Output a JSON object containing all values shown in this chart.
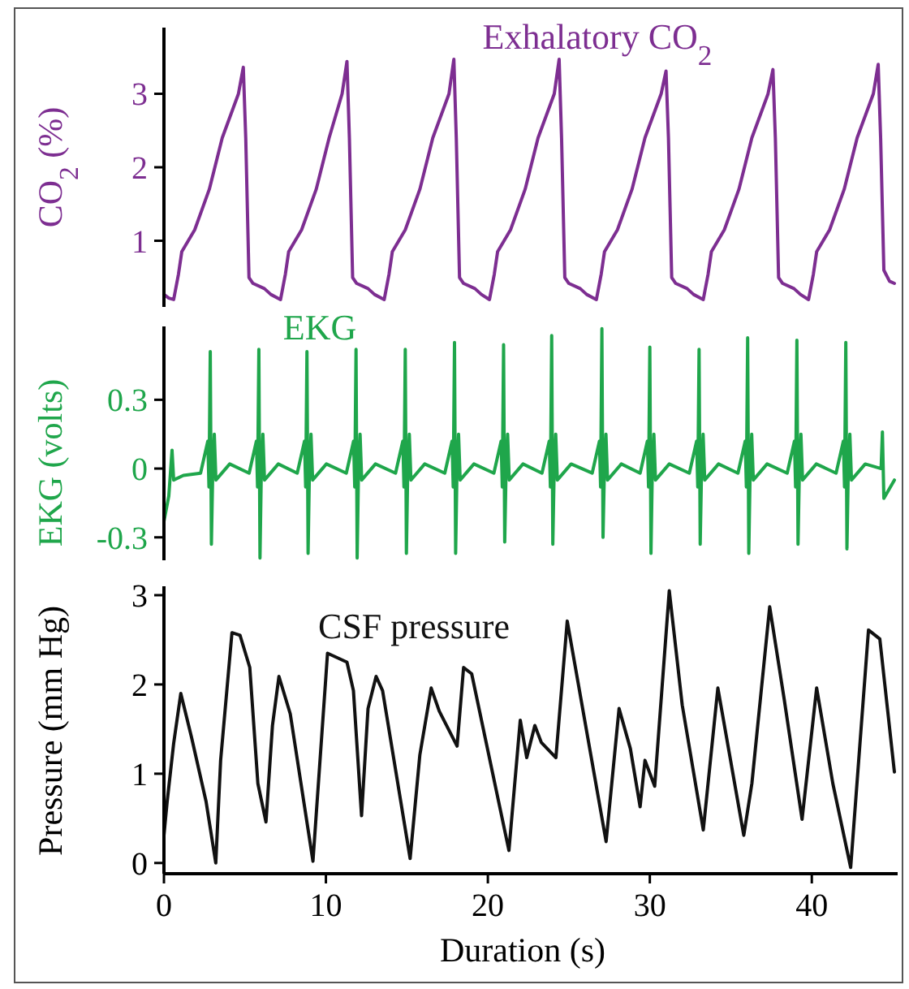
{
  "chart_data": [
    {
      "type": "line",
      "title": "Exhalatory CO$_{2}$",
      "ylabel": "CO$_{2}$ (%)",
      "xlim": [
        0,
        45.3
      ],
      "ylim": [
        0.1,
        3.9
      ],
      "yticks": [
        1,
        2,
        3
      ],
      "tick_labels": "y",
      "series": [
        {
          "color": "#7d2e91",
          "x": [
            0,
            0.3,
            0.6,
            0.9,
            1.1,
            1.5,
            1.9,
            2.8,
            3.6,
            4.6,
            4.9,
            5.05,
            5.25,
            5.5,
            6.2,
            6.6,
            7.2,
            7.5,
            7.7,
            8.1,
            8.5,
            9.4,
            10.2,
            11.0,
            11.3,
            11.45,
            11.65,
            11.9,
            12.6,
            13.0,
            13.6,
            13.9,
            14.1,
            14.5,
            14.9,
            15.8,
            16.6,
            17.6,
            17.9,
            18.05,
            18.25,
            18.5,
            19.2,
            19.6,
            20.1,
            20.4,
            20.6,
            21.0,
            21.4,
            22.3,
            23.1,
            24.1,
            24.4,
            24.55,
            24.75,
            25.0,
            25.7,
            26.1,
            26.7,
            27.0,
            27.2,
            27.6,
            28.0,
            28.9,
            29.7,
            30.7,
            31.0,
            31.15,
            31.35,
            31.6,
            32.3,
            32.7,
            33.3,
            33.6,
            33.8,
            34.2,
            34.6,
            35.5,
            36.3,
            37.3,
            37.6,
            37.75,
            37.95,
            38.2,
            38.9,
            39.3,
            39.8,
            40.1,
            40.3,
            40.7,
            41.1,
            42.0,
            42.8,
            43.8,
            44.1,
            44.25,
            44.45,
            44.8,
            45.1
          ],
          "values": [
            0.27,
            0.22,
            0.2,
            0.55,
            0.85,
            1.0,
            1.15,
            1.7,
            2.4,
            3.0,
            3.36,
            2.4,
            0.5,
            0.42,
            0.35,
            0.27,
            0.2,
            0.55,
            0.85,
            1.0,
            1.15,
            1.7,
            2.4,
            3.0,
            3.44,
            2.4,
            0.5,
            0.42,
            0.35,
            0.27,
            0.2,
            0.55,
            0.85,
            1.0,
            1.15,
            1.7,
            2.4,
            3.0,
            3.47,
            2.4,
            0.5,
            0.42,
            0.35,
            0.27,
            0.2,
            0.55,
            0.85,
            1.0,
            1.15,
            1.7,
            2.4,
            3.0,
            3.47,
            2.4,
            0.5,
            0.42,
            0.35,
            0.27,
            0.2,
            0.55,
            0.85,
            1.0,
            1.15,
            1.7,
            2.4,
            3.0,
            3.31,
            2.4,
            0.5,
            0.42,
            0.35,
            0.27,
            0.2,
            0.55,
            0.85,
            1.0,
            1.15,
            1.7,
            2.4,
            3.0,
            3.33,
            2.4,
            0.5,
            0.42,
            0.35,
            0.27,
            0.2,
            0.55,
            0.85,
            1.0,
            1.15,
            1.7,
            2.4,
            3.0,
            3.4,
            2.4,
            0.6,
            0.45,
            0.42
          ]
        }
      ]
    },
    {
      "type": "line",
      "title": "EKG",
      "ylabel": "EKG (volts)",
      "xlim": [
        0,
        45.3
      ],
      "ylim": [
        -0.4,
        0.62
      ],
      "yticks": [
        -0.3,
        0,
        0.3
      ],
      "tick_labels": "y",
      "series": [
        {
          "color": "#1fa64b",
          "x": [
            0,
            0.3,
            0.5,
            0.6,
            1.2,
            2.26,
            2.71,
            2.78,
            2.86,
            2.93,
            3.01,
            3.11,
            3.21,
            4.06,
            5.26,
            5.71,
            5.78,
            5.86,
            5.93,
            6.01,
            6.11,
            6.21,
            7.06,
            8.23,
            8.68,
            8.75,
            8.83,
            8.9,
            8.98,
            9.08,
            9.18,
            10.03,
            11.26,
            11.71,
            11.78,
            11.86,
            11.93,
            12.01,
            12.11,
            12.21,
            13.06,
            14.3,
            14.75,
            14.82,
            14.9,
            14.97,
            15.05,
            15.15,
            15.25,
            16.1,
            17.34,
            17.79,
            17.86,
            17.94,
            18.01,
            18.09,
            18.19,
            18.29,
            19.14,
            20.37,
            20.82,
            20.89,
            20.97,
            21.04,
            21.12,
            21.22,
            21.32,
            22.17,
            23.34,
            23.79,
            23.86,
            23.94,
            24.01,
            24.09,
            24.19,
            24.29,
            25.14,
            26.44,
            26.89,
            26.96,
            27.04,
            27.11,
            27.19,
            27.29,
            27.39,
            28.24,
            29.4,
            29.85,
            29.92,
            30.0,
            30.07,
            30.15,
            30.25,
            30.35,
            31.2,
            32.44,
            32.89,
            32.96,
            33.04,
            33.11,
            33.19,
            33.29,
            33.39,
            34.24,
            35.44,
            35.89,
            35.96,
            36.04,
            36.11,
            36.19,
            36.29,
            36.39,
            37.24,
            38.48,
            38.93,
            39.0,
            39.08,
            39.15,
            39.23,
            39.33,
            39.43,
            40.28,
            41.5,
            41.95,
            42.02,
            42.1,
            42.17,
            42.25,
            42.35,
            42.45,
            43.3,
            44.28,
            44.36,
            44.45,
            45.1
          ],
          "values": [
            -0.23,
            -0.12,
            0.08,
            -0.05,
            -0.03,
            -0.02,
            0.12,
            -0.08,
            0.51,
            -0.33,
            -0.02,
            0.15,
            -0.05,
            0.02,
            -0.02,
            0.12,
            -0.08,
            0.52,
            -0.39,
            -0.02,
            0.15,
            -0.05,
            0.02,
            -0.02,
            0.12,
            -0.08,
            0.51,
            -0.37,
            -0.02,
            0.15,
            -0.05,
            0.02,
            -0.02,
            0.12,
            -0.08,
            0.52,
            -0.39,
            -0.02,
            0.15,
            -0.05,
            0.02,
            -0.02,
            0.12,
            -0.08,
            0.52,
            -0.37,
            -0.02,
            0.15,
            -0.05,
            0.02,
            -0.02,
            0.12,
            -0.08,
            0.55,
            -0.37,
            -0.02,
            0.15,
            -0.05,
            0.02,
            -0.02,
            0.12,
            -0.08,
            0.54,
            -0.32,
            -0.02,
            0.15,
            -0.05,
            0.02,
            -0.02,
            0.12,
            -0.08,
            0.58,
            -0.33,
            -0.02,
            0.15,
            -0.05,
            0.02,
            -0.02,
            0.12,
            -0.08,
            0.61,
            -0.3,
            -0.02,
            0.15,
            -0.05,
            0.02,
            -0.02,
            0.12,
            -0.08,
            0.53,
            -0.37,
            -0.02,
            0.15,
            -0.05,
            0.02,
            -0.02,
            0.12,
            -0.08,
            0.52,
            -0.33,
            -0.02,
            0.15,
            -0.05,
            0.02,
            -0.02,
            0.12,
            -0.08,
            0.57,
            -0.37,
            -0.02,
            0.15,
            -0.05,
            0.02,
            -0.02,
            0.12,
            -0.08,
            0.56,
            -0.33,
            -0.02,
            0.15,
            -0.05,
            0.02,
            -0.02,
            0.12,
            -0.08,
            0.55,
            -0.35,
            -0.02,
            0.15,
            -0.05,
            0.02,
            0.0,
            0.16,
            -0.13,
            -0.05
          ]
        }
      ]
    },
    {
      "type": "line",
      "title": "CSF pressure",
      "ylabel": "Pressure (mm Hg)",
      "xlabel": "Duration (s)",
      "xlim": [
        0,
        45.3
      ],
      "xticks": [
        0,
        10,
        20,
        30,
        40
      ],
      "ylim": [
        -0.12,
        3.1
      ],
      "yticks": [
        0,
        1,
        2,
        3
      ],
      "series": [
        {
          "color": "#111111",
          "x": [
            0,
            0.2,
            0.6,
            1.04,
            1.7,
            2.6,
            3.2,
            3.5,
            4.2,
            4.7,
            5.3,
            5.8,
            6.3,
            6.7,
            7.1,
            7.8,
            9.2,
            10.1,
            11.3,
            11.7,
            12.2,
            12.6,
            13.1,
            13.5,
            15.2,
            15.8,
            16.5,
            17.0,
            18.1,
            18.5,
            19.0,
            21.3,
            22.0,
            22.4,
            22.9,
            23.3,
            24.2,
            24.9,
            25.6,
            27.3,
            28.1,
            28.8,
            29.4,
            29.7,
            30.3,
            31.2,
            32.0,
            33.3,
            34.2,
            35.8,
            36.3,
            37.4,
            38.3,
            39.4,
            40.3,
            41.3,
            42.4,
            43.5,
            44.2,
            45.1
          ],
          "values": [
            0.31,
            0.69,
            1.34,
            1.9,
            1.41,
            0.69,
            0.0,
            1.15,
            2.58,
            2.55,
            2.19,
            0.89,
            0.46,
            1.54,
            2.09,
            1.67,
            0.02,
            2.35,
            2.25,
            1.93,
            0.53,
            1.73,
            2.09,
            1.93,
            0.05,
            1.21,
            1.96,
            1.7,
            1.31,
            2.19,
            2.12,
            0.14,
            1.6,
            1.18,
            1.54,
            1.35,
            1.18,
            2.71,
            1.99,
            0.24,
            1.73,
            1.28,
            0.63,
            1.15,
            0.86,
            3.05,
            1.77,
            0.37,
            1.96,
            0.31,
            0.89,
            2.87,
            1.83,
            0.49,
            1.96,
            0.89,
            -0.05,
            2.61,
            2.51,
            1.02
          ]
        }
      ]
    }
  ]
}
